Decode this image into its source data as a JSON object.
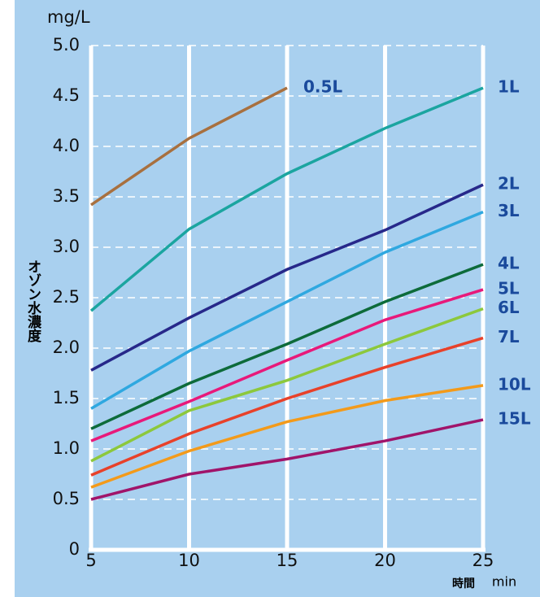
{
  "chart_data": {
    "type": "line",
    "y_unit": "mg/L",
    "y_label": "オゾン水濃度",
    "x_label": "時間",
    "x_unit": "min",
    "x": [
      5,
      10,
      15,
      20,
      25
    ],
    "xlim": [
      5,
      25
    ],
    "xticks": [
      5,
      10,
      15,
      20,
      25
    ],
    "ylim": [
      0,
      5
    ],
    "yticks": [
      0,
      0.5,
      {
        "value": 1,
        "label": "1.0"
      },
      1.5,
      {
        "value": 2,
        "label": "2.0"
      },
      2.5,
      {
        "value": 3,
        "label": "3.0"
      },
      3.5,
      {
        "value": 4,
        "label": "4.0"
      },
      4.5,
      {
        "value": 5,
        "label": "5.0"
      }
    ],
    "grid": true,
    "series": [
      {
        "name": "0.5L",
        "color": "#a8703f",
        "values": [
          3.42,
          4.08,
          4.58,
          null,
          null
        ]
      },
      {
        "name": "1L",
        "color": "#1ba5a0",
        "values": [
          2.37,
          3.18,
          3.73,
          4.18,
          4.58
        ]
      },
      {
        "name": "2L",
        "color": "#27288a",
        "values": [
          1.78,
          2.3,
          2.78,
          3.17,
          3.62
        ]
      },
      {
        "name": "3L",
        "color": "#2fa8e0",
        "values": [
          1.4,
          1.97,
          2.46,
          2.95,
          3.35
        ]
      },
      {
        "name": "4L",
        "color": "#0d6b3a",
        "values": [
          1.2,
          1.65,
          2.04,
          2.46,
          2.83
        ]
      },
      {
        "name": "5L",
        "color": "#e8197a",
        "values": [
          1.08,
          1.47,
          1.88,
          2.28,
          2.58
        ]
      },
      {
        "name": "6L",
        "color": "#8cc83c",
        "values": [
          0.88,
          1.38,
          1.68,
          2.04,
          2.39
        ]
      },
      {
        "name": "7L",
        "color": "#e8412a",
        "values": [
          0.74,
          1.15,
          1.5,
          1.81,
          2.1
        ]
      },
      {
        "name": "10L",
        "color": "#f39a1a",
        "values": [
          0.62,
          0.98,
          1.27,
          1.48,
          1.63
        ]
      },
      {
        "name": "15L",
        "color": "#a0146a",
        "values": [
          0.5,
          0.75,
          0.9,
          1.08,
          1.29
        ]
      }
    ]
  }
}
